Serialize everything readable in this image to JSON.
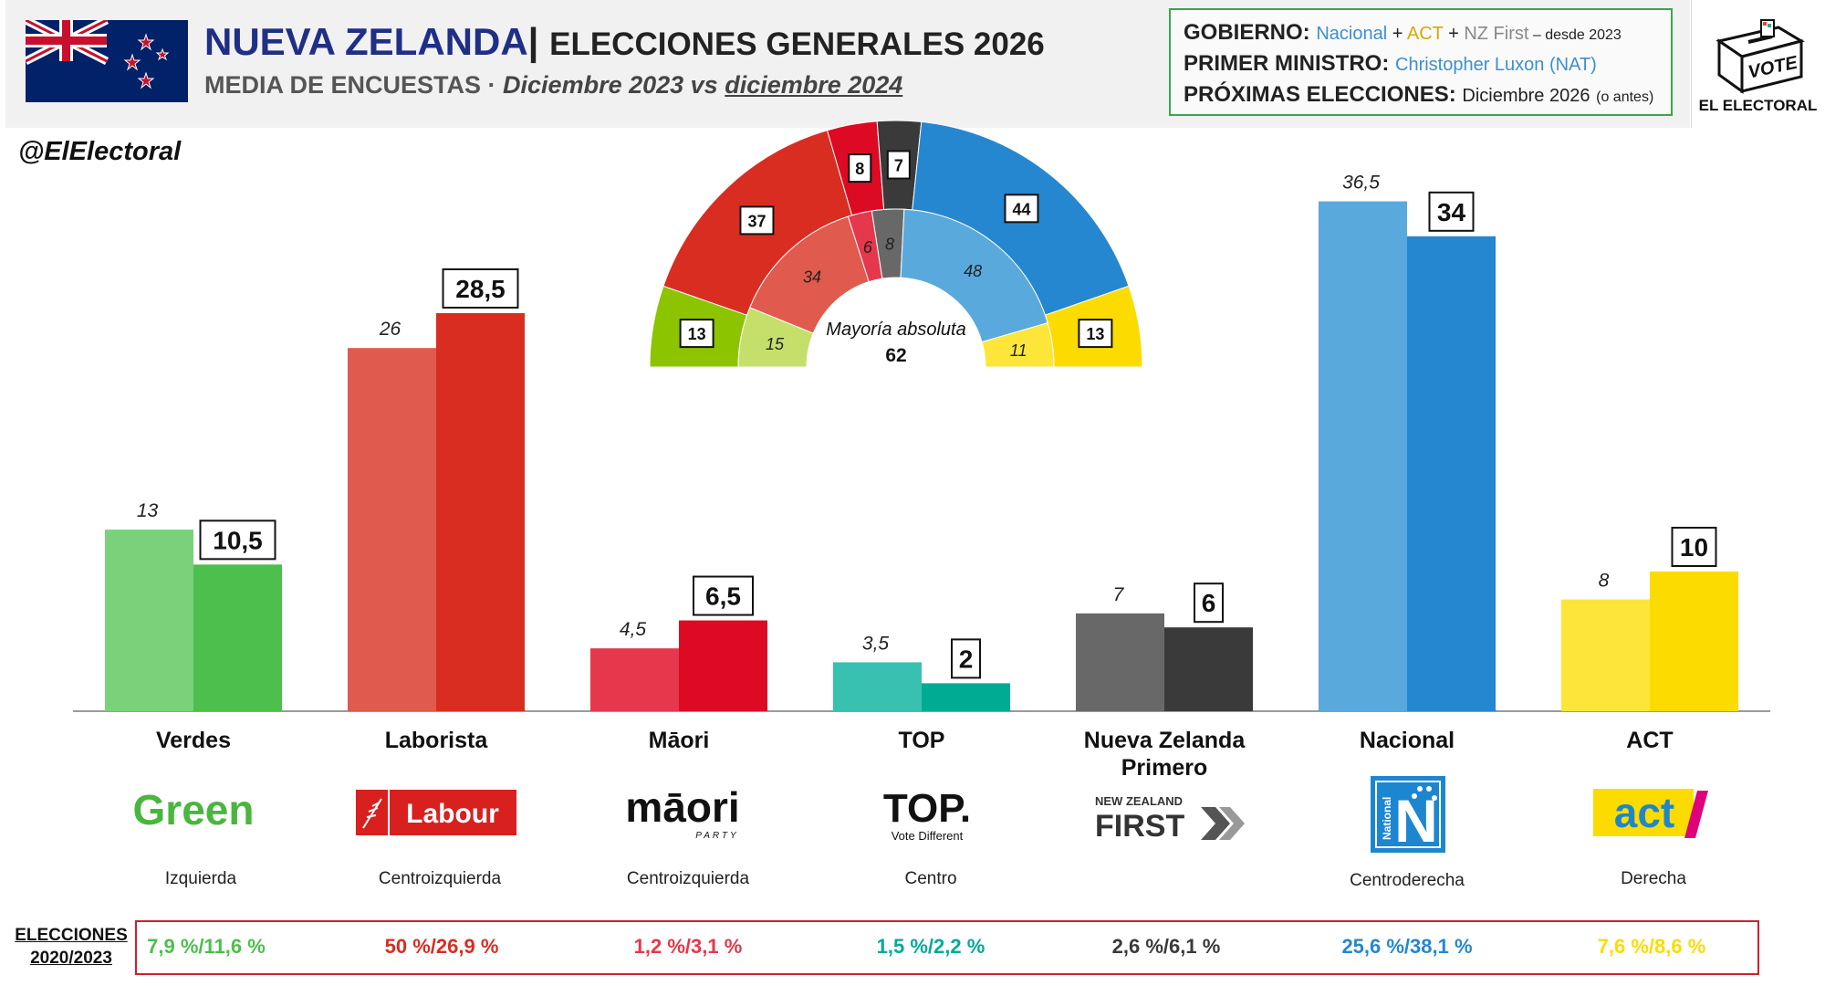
{
  "header": {
    "country": "NUEVA ZELANDA",
    "separator": "|",
    "title": "ELECCIONES GENERALES 2026",
    "subtitle_prefix": "MEDIA DE ENCUESTAS",
    "subtitle_dot": " · ",
    "subtitle_from": "Diciembre 2023 vs ",
    "subtitle_to": "diciembre 2024",
    "handle": "@ElElectoral"
  },
  "gov": {
    "gobierno_label": "GOBIERNO:",
    "gobierno_p1": "Nacional",
    "plus": " + ",
    "gobierno_p2": "ACT",
    "gobierno_p3": "NZ First",
    "gobierno_since": " – desde 2023",
    "pm_label": "PRIMER MINISTRO:",
    "pm_value": "Christopher Luxon (NAT)",
    "next_label": "PRÓXIMAS ELECCIONES:",
    "next_value": "Diciembre 2026",
    "next_note": "(o antes)"
  },
  "vote_logo": {
    "box_text": "VOTE",
    "caption": "EL ELECTORAL"
  },
  "colors": {
    "verdes_old": "#7ad17a",
    "verdes_new": "#4cbf4c",
    "laborista_old": "#e05a4d",
    "laborista_new": "#d92d22",
    "maori_old": "#e5384c",
    "maori_new": "#dd0a24",
    "top_old": "#38c0b0",
    "top_new": "#00ab94",
    "nzf_old": "#686868",
    "nzf_new": "#3a3a3a",
    "nacional_old": "#5aa9dc",
    "nacional_new": "#2587d0",
    "act_old": "#fde53a",
    "act_new": "#fcdc00"
  },
  "chart_data": {
    "type": "bar",
    "categories": [
      "Verdes",
      "Laborista",
      "Māori",
      "TOP",
      "Nueva Zelanda Primero",
      "Nacional",
      "ACT"
    ],
    "series": [
      {
        "name": "Diciembre 2023",
        "values": [
          13,
          26,
          4.5,
          3.5,
          7,
          36.5,
          8
        ]
      },
      {
        "name": "diciembre 2024",
        "values": [
          10.5,
          28.5,
          6.5,
          2,
          6,
          34,
          10
        ]
      }
    ],
    "old_labels": [
      "13",
      "26",
      "4,5",
      "3,5",
      "7",
      "36,5",
      "8"
    ],
    "new_labels": [
      "10,5",
      "28,5",
      "6,5",
      "2",
      "6",
      "34",
      "10"
    ],
    "ylim": [
      0,
      40
    ]
  },
  "parliament": {
    "majority_label": "Mayoría absoluta",
    "majority_value": "62",
    "outer_seats": [
      13,
      37,
      8,
      7,
      44,
      13
    ],
    "inner_seats": [
      15,
      34,
      6,
      8,
      48,
      11
    ],
    "outer_labels": [
      "13",
      "37",
      "8",
      "7",
      "44",
      "13"
    ],
    "inner_labels": [
      "15",
      "34",
      "6",
      "8",
      "48",
      "11"
    ],
    "outer_colors": [
      "#8cc400",
      "#d92d22",
      "#dd0a24",
      "#3a3a3a",
      "#2587d0",
      "#fcdc00"
    ],
    "inner_colors": [
      "#c4e06a",
      "#e05a4d",
      "#e5384c",
      "#686868",
      "#5aa9dc",
      "#fde53a"
    ]
  },
  "parties": [
    {
      "name": "Verdes",
      "ideology": "Izquierda",
      "logo_text": "Green",
      "elections": "7,9 %/11,6 %",
      "color": "#4cbf4c"
    },
    {
      "name": "Laborista",
      "ideology": "Centroizquierda",
      "logo_text": "Labour",
      "elections": "50 %/26,9 %",
      "color": "#d92d22"
    },
    {
      "name": "Māori",
      "ideology": "Centroizquierda",
      "logo_text": "māori",
      "logo_sub": "PARTY",
      "elections": "1,2 %/3,1 %",
      "color": "#e5384c"
    },
    {
      "name": "TOP",
      "ideology": "Centro",
      "logo_text": "TOP.",
      "logo_sub": "Vote Different",
      "elections": "1,5 %/2,2 %",
      "color": "#00ab94"
    },
    {
      "name_line1": "Nueva Zelanda",
      "name_line2": "Primero",
      "ideology": "",
      "logo_top": "NEW ZEALAND",
      "logo_text": "FIRST",
      "elections": "2,6 %/6,1 %",
      "color": "#3a3a3a"
    },
    {
      "name": "Nacional",
      "ideology": "Centroderecha",
      "logo_text": "National",
      "elections": "25,6 %/38,1 %",
      "color": "#2587d0"
    },
    {
      "name": "ACT",
      "ideology": "Derecha",
      "logo_text": "act",
      "elections": "7,6 %/8,6 %",
      "color": "#fcdc00"
    }
  ],
  "elections_label_1": "ELECCIONES",
  "elections_label_2": "2020/2023"
}
